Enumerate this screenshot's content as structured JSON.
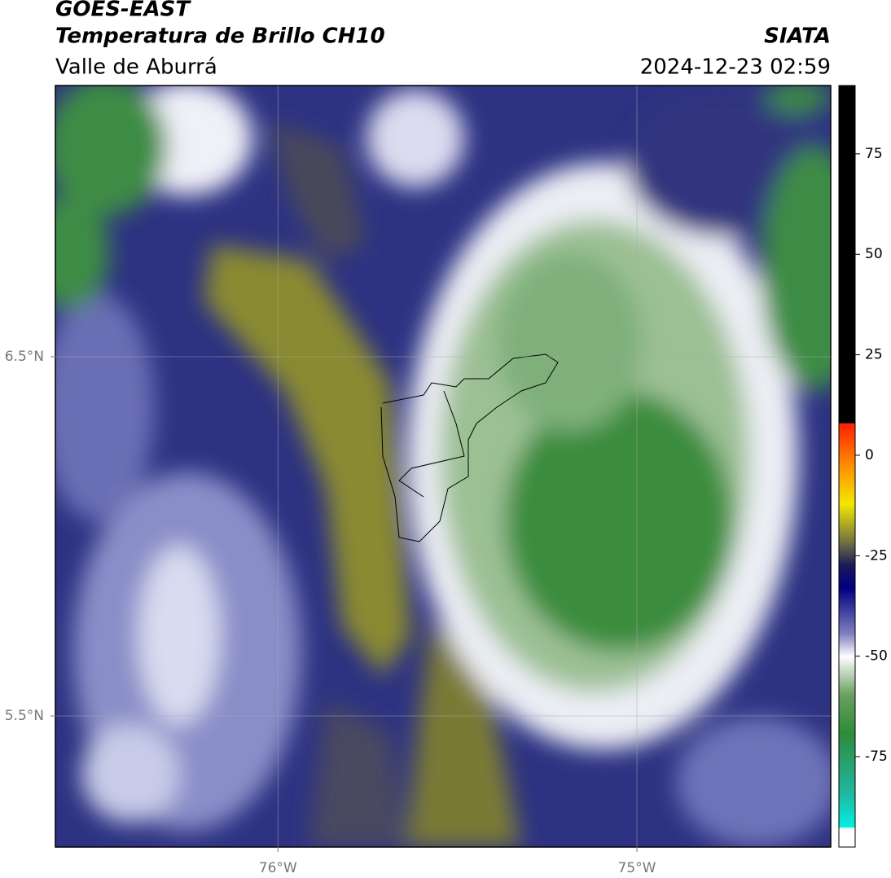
{
  "header": {
    "title": "GOES-EAST",
    "subtitle": "Temperatura de Brillo CH10",
    "region": "Valle de Aburrá",
    "source": "SIATA",
    "timestamp": "2024-12-23 02:59"
  },
  "map": {
    "xlim": [
      -76.62,
      -74.46
    ],
    "ylim": [
      5.135,
      7.255
    ],
    "xticks": [
      {
        "value": -76,
        "label": "76°W"
      },
      {
        "value": -75,
        "label": "75°W"
      }
    ],
    "yticks": [
      {
        "value": 6.5,
        "label": "6.5°N"
      },
      {
        "value": 5.5,
        "label": "5.5°N"
      }
    ],
    "grid": true
  },
  "colorbar": {
    "lim": [
      -97.5,
      92
    ],
    "ticks": [
      75,
      50,
      25,
      0,
      -25,
      -50,
      -75
    ]
  }
}
